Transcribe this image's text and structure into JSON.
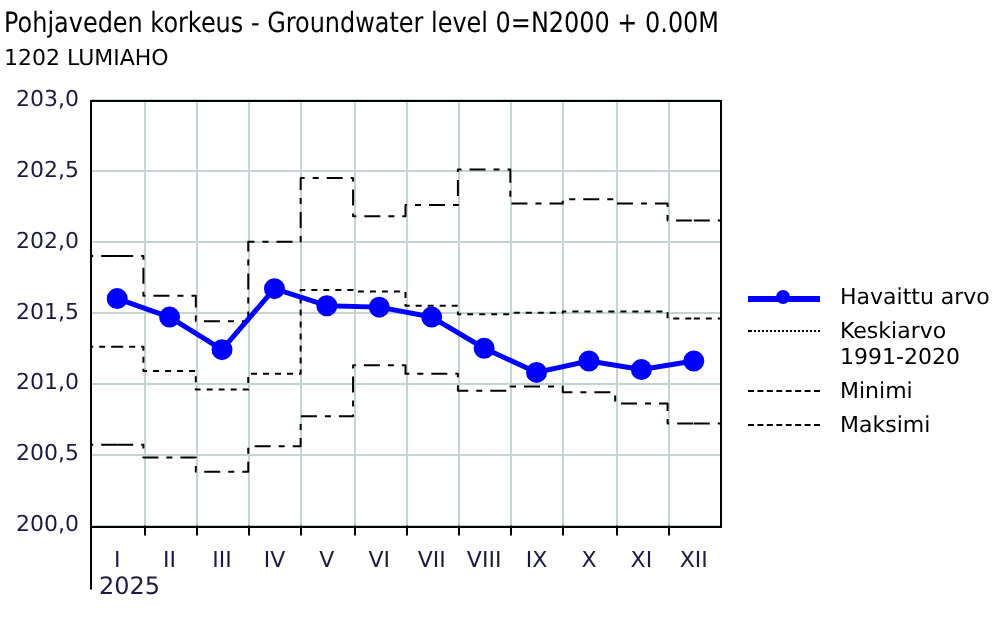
{
  "chart_data": {
    "type": "line",
    "title": "Pohjaveden korkeus - Groundwater level 0=N2000 + 0.00M",
    "subtitle": "1202 LUMIAHO",
    "xlabel": "2025",
    "categories": [
      "I",
      "II",
      "III",
      "IV",
      "V",
      "VI",
      "VII",
      "VIII",
      "IX",
      "X",
      "XI",
      "XII"
    ],
    "ylim": [
      200,
      203
    ],
    "yticks": [
      {
        "value": 200,
        "label": "200,0"
      },
      {
        "value": 200.5,
        "label": "200,5"
      },
      {
        "value": 201,
        "label": "201,0"
      },
      {
        "value": 201.5,
        "label": "201,5"
      },
      {
        "value": 202,
        "label": "202,0"
      },
      {
        "value": 202.5,
        "label": "202,5"
      },
      {
        "value": 203,
        "label": "203,0"
      }
    ],
    "grid": true,
    "legend": "right",
    "series": [
      {
        "name": "Havaittu arvo",
        "color": "#0000ff",
        "marker": "circle",
        "line_style": "solid",
        "values": [
          201.6,
          201.47,
          201.24,
          201.67,
          201.55,
          201.54,
          201.47,
          201.25,
          201.08,
          201.16,
          201.1,
          201.16
        ]
      },
      {
        "name": "Keskiarvo 1991-2020",
        "type": "step",
        "color": "#000000",
        "marker": "none",
        "line_style": "dotted",
        "values": [
          201.26,
          201.09,
          200.96,
          201.07,
          201.66,
          201.65,
          201.55,
          201.49,
          201.5,
          201.51,
          201.51,
          201.46
        ]
      },
      {
        "name": "Minimi",
        "type": "step",
        "color": "#000000",
        "marker": "none",
        "line_style": "dashed",
        "values": [
          200.57,
          200.48,
          200.38,
          200.56,
          200.77,
          201.13,
          201.07,
          200.95,
          200.98,
          200.94,
          200.86,
          200.72
        ]
      },
      {
        "name": "Maksimi",
        "type": "step",
        "color": "#000000",
        "marker": "none",
        "line_style": "dashed",
        "values": [
          201.9,
          201.62,
          201.44,
          202.0,
          202.45,
          202.18,
          202.26,
          202.51,
          202.27,
          202.3,
          202.27,
          202.15
        ]
      }
    ]
  }
}
